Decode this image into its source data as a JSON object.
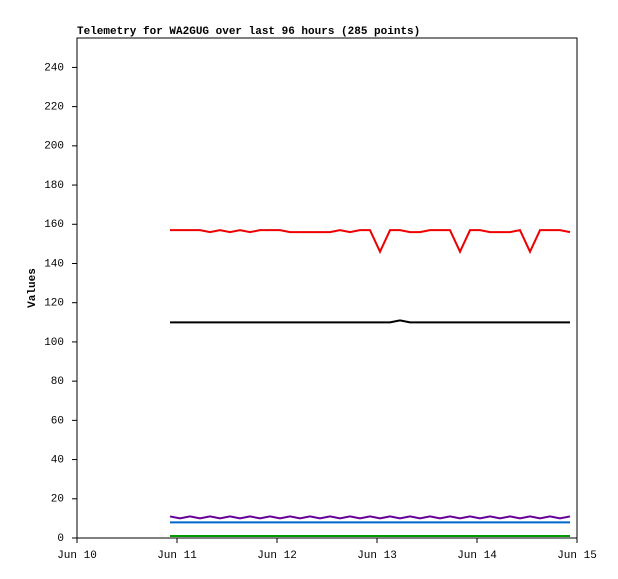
{
  "chart_data": {
    "type": "line",
    "title": "Telemetry for WA2GUG over last 96 hours (285 points)",
    "y_label": "Values",
    "x": [
      10.93,
      11.03,
      11.13,
      11.23,
      11.33,
      11.43,
      11.53,
      11.63,
      11.73,
      11.83,
      11.93,
      12.03,
      12.13,
      12.23,
      12.33,
      12.43,
      12.53,
      12.63,
      12.73,
      12.83,
      12.93,
      13.03,
      13.13,
      13.23,
      13.33,
      13.43,
      13.53,
      13.63,
      13.73,
      13.83,
      13.93,
      14.03,
      14.13,
      14.23,
      14.33,
      14.43,
      14.53,
      14.63,
      14.73,
      14.83,
      14.93
    ],
    "series": [
      {
        "color": "#ee0000",
        "values": [
          157,
          157,
          157,
          157,
          156,
          157,
          156,
          157,
          156,
          157,
          157,
          157,
          156,
          156,
          156,
          156,
          156,
          157,
          156,
          157,
          157,
          146,
          157,
          157,
          156,
          156,
          157,
          157,
          157,
          146,
          157,
          157,
          156,
          156,
          156,
          157,
          146,
          157,
          157,
          157,
          156
        ]
      },
      {
        "color": "#000000",
        "values": [
          110,
          110,
          110,
          110,
          110,
          110,
          110,
          110,
          110,
          110,
          110,
          110,
          110,
          110,
          110,
          110,
          110,
          110,
          110,
          110,
          110,
          110,
          110,
          111,
          110,
          110,
          110,
          110,
          110,
          110,
          110,
          110,
          110,
          110,
          110,
          110,
          110,
          110,
          110,
          110,
          110
        ]
      },
      {
        "color": "#660099",
        "values": [
          11,
          10,
          11,
          10,
          11,
          10,
          11,
          10,
          11,
          10,
          11,
          10,
          11,
          10,
          11,
          10,
          11,
          10,
          11,
          10,
          11,
          10,
          11,
          10,
          11,
          10,
          11,
          10,
          11,
          10,
          11,
          10,
          11,
          10,
          11,
          10,
          11,
          10,
          11,
          10,
          11
        ]
      },
      {
        "color": "#0066cc",
        "values": [
          8,
          8,
          8,
          8,
          8,
          8,
          8,
          8,
          8,
          8,
          8,
          8,
          8,
          8,
          8,
          8,
          8,
          8,
          8,
          8,
          8,
          8,
          8,
          8,
          8,
          8,
          8,
          8,
          8,
          8,
          8,
          8,
          8,
          8,
          8,
          8,
          8,
          8,
          8,
          8,
          8
        ]
      },
      {
        "color": "#009900",
        "values": [
          1,
          1,
          1,
          1,
          1,
          1,
          1,
          1,
          1,
          1,
          1,
          1,
          1,
          1,
          1,
          1,
          1,
          1,
          1,
          1,
          1,
          1,
          1,
          1,
          1,
          1,
          1,
          1,
          1,
          1,
          1,
          1,
          1,
          1,
          1,
          1,
          1,
          1,
          1,
          1,
          1
        ]
      }
    ],
    "xlim": [
      10,
      15
    ],
    "xticks": [
      {
        "value": 10,
        "label": "Jun 10"
      },
      {
        "value": 11,
        "label": "Jun 11"
      },
      {
        "value": 12,
        "label": "Jun 12"
      },
      {
        "value": 13,
        "label": "Jun 13"
      },
      {
        "value": 14,
        "label": "Jun 14"
      },
      {
        "value": 15,
        "label": "Jun 15"
      }
    ],
    "ylim": [
      0,
      255
    ],
    "yticks": [
      0,
      20,
      40,
      60,
      80,
      100,
      120,
      140,
      160,
      180,
      200,
      220,
      240
    ],
    "grid": false
  }
}
